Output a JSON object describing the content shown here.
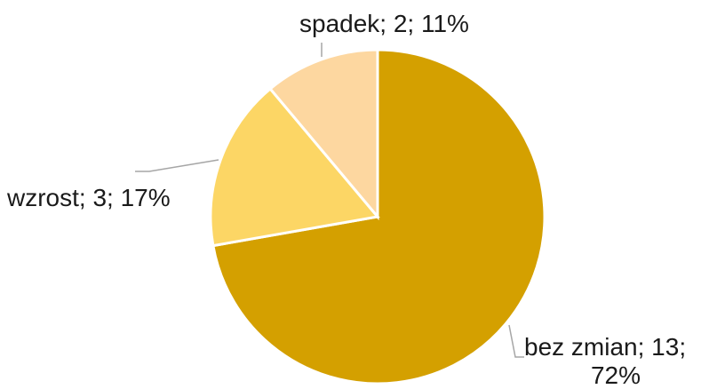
{
  "chart_data": {
    "type": "pie",
    "title": "",
    "slices": [
      {
        "label": "bez zmian",
        "value": 13,
        "percent": "72%",
        "color": "#d4a000",
        "label_lines": [
          "bez zmian; 13;",
          "72%"
        ]
      },
      {
        "label": "wzrost",
        "value": 3,
        "percent": "17%",
        "color": "#fcd665",
        "label_lines": [
          "wzrost; 3; 17%"
        ]
      },
      {
        "label": "spadek",
        "value": 2,
        "percent": "11%",
        "color": "#fdd7a0",
        "label_lines": [
          "spadek; 2; 11%"
        ]
      }
    ],
    "legend": "none",
    "data_labels": "category; value; percent"
  }
}
